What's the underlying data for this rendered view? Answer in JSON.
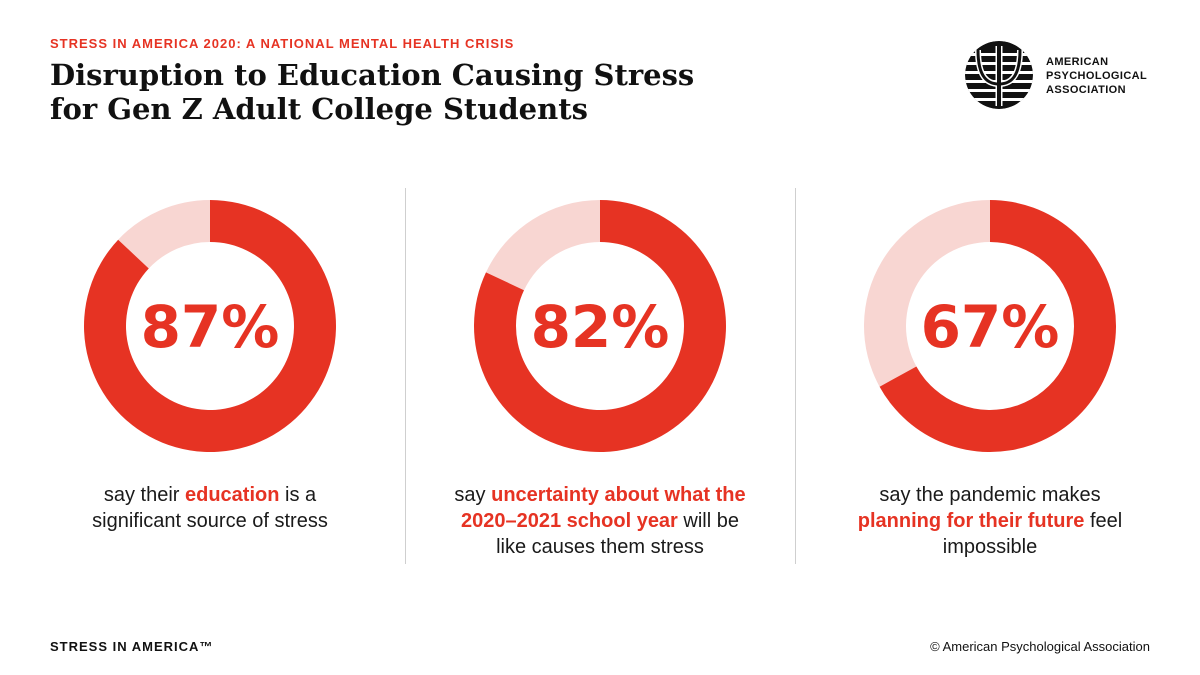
{
  "kicker": "STRESS IN AMERICA 2020: A NATIONAL MENTAL HEALTH CRISIS",
  "title_line1": "Disruption to Education Causing Stress",
  "title_line2": "for Gen Z Adult College Students",
  "logo": {
    "line1": "AMERICAN",
    "line2": "PSYCHOLOGICAL",
    "line3": "ASSOCIATION",
    "icon": "psi-emblem-icon"
  },
  "colors": {
    "accent": "#e63323",
    "track": "#f8d6d2"
  },
  "chart_data": [
    {
      "type": "pie",
      "style": "donut",
      "value": 87,
      "remainder": 13,
      "label": "87%",
      "caption": {
        "pre": "say their ",
        "highlight": "education",
        "post": " is a significant source of stress"
      }
    },
    {
      "type": "pie",
      "style": "donut",
      "value": 82,
      "remainder": 18,
      "label": "82%",
      "caption": {
        "pre": "say ",
        "highlight": "uncertainty about what the 2020–2021 school year",
        "post": " will be like causes them stress"
      }
    },
    {
      "type": "pie",
      "style": "donut",
      "value": 67,
      "remainder": 33,
      "label": "67%",
      "caption": {
        "pre": "say the pandemic makes ",
        "highlight": "planning for their future",
        "post": " feel impossible"
      }
    }
  ],
  "footer": {
    "left": "STRESS IN AMERICA™",
    "right": "© American Psychological Association"
  }
}
